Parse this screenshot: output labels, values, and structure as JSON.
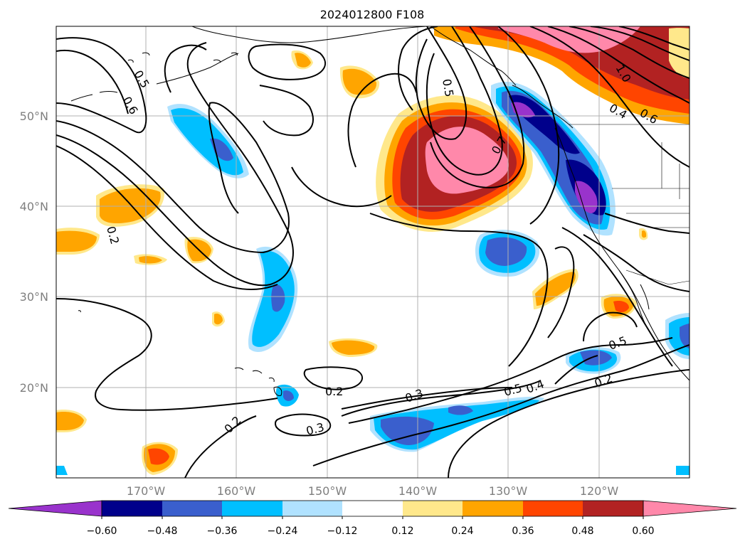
{
  "title": "2024012800 F108",
  "lat_labels": [
    "50°N",
    "40°N",
    "30°N",
    "20°N"
  ],
  "lon_labels": [
    "170°W",
    "160°W",
    "150°W",
    "140°W",
    "130°W",
    "120°W"
  ],
  "colorbar": {
    "ticks": [
      "−0.60",
      "−0.48",
      "−0.36",
      "−0.24",
      "−0.12",
      "0.12",
      "0.24",
      "0.36",
      "0.48",
      "0.60"
    ],
    "colors": [
      "#9933cc",
      "#00008b",
      "#3a5fcd",
      "#00bfff",
      "#b0e2ff",
      "#ffffff",
      "#ffe88b",
      "#ffa500",
      "#ff4500",
      "#b22222",
      "#ff88aa"
    ]
  },
  "contour_labels": [
    "0.5",
    "0.6",
    "0.2",
    "0.5",
    "0.7",
    "1.0",
    "0.4",
    "0.6",
    "0.2",
    "0.3",
    "0.3",
    "0.2",
    "0.5",
    "0.4",
    "0.5",
    "0.2",
    "0.3"
  ],
  "palette": {
    "purple": "#9933cc",
    "navy": "#00008b",
    "mid_blue": "#3a5fcd",
    "sky_blue": "#00bfff",
    "light_blue": "#b0e2ff",
    "light_yellow": "#ffe88b",
    "orange": "#ffa500",
    "red_orange": "#ff4500",
    "dark_red": "#b22222",
    "pink": "#ff88aa"
  }
}
